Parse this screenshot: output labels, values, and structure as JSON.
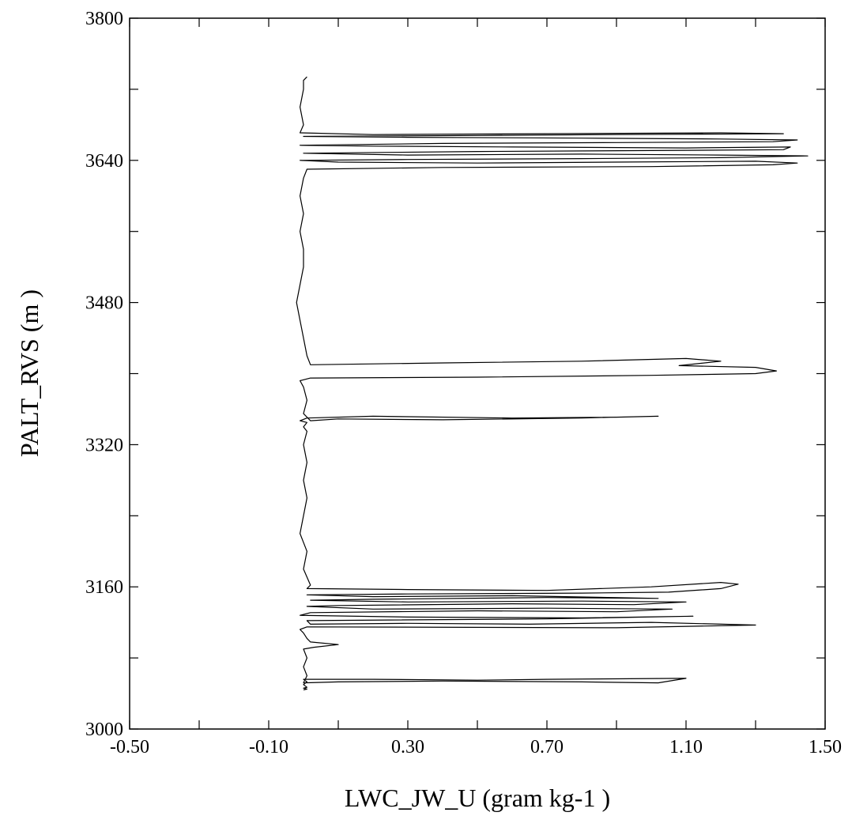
{
  "chart_data": {
    "type": "line",
    "title": "",
    "xlabel": "LWC_JW_U (gram kg-1      )",
    "ylabel": "PALT_RVS (m         )",
    "xlim": [
      -0.5,
      1.5
    ],
    "ylim": [
      3000,
      3800
    ],
    "x_ticks": [
      -0.5,
      -0.3,
      -0.1,
      0.1,
      0.3,
      0.5,
      0.7,
      0.9,
      1.1,
      1.3,
      1.5
    ],
    "x_tick_labels": [
      "-0.50",
      "-0.10",
      "0.30",
      "0.70",
      "1.10",
      "1.50"
    ],
    "y_ticks": [
      3000,
      3080,
      3160,
      3240,
      3320,
      3400,
      3480,
      3560,
      3640,
      3720,
      3800
    ],
    "y_tick_labels": [
      "3000",
      "3160",
      "3320",
      "3480",
      "3640",
      "3800"
    ],
    "grid": false,
    "legend": "none",
    "series": [
      {
        "color": "#000000",
        "points": [
          [
            0.0,
            3044
          ],
          [
            0.01,
            3045
          ],
          [
            0.0,
            3046
          ],
          [
            0.01,
            3047
          ],
          [
            0.0,
            3050
          ],
          [
            0.01,
            3053
          ],
          [
            0.0,
            3056
          ],
          [
            0.2,
            3056
          ],
          [
            0.5,
            3055
          ],
          [
            0.7,
            3056
          ],
          [
            1.1,
            3057
          ],
          [
            1.02,
            3052
          ],
          [
            0.8,
            3053
          ],
          [
            0.4,
            3054
          ],
          [
            0.1,
            3053
          ],
          [
            0.0,
            3052
          ],
          [
            0.01,
            3060
          ],
          [
            0.0,
            3070
          ],
          [
            0.01,
            3080
          ],
          [
            0.0,
            3090
          ],
          [
            0.03,
            3092
          ],
          [
            0.1,
            3095
          ],
          [
            0.02,
            3098
          ],
          [
            0.01,
            3102
          ],
          [
            0.0,
            3108
          ],
          [
            -0.01,
            3112
          ],
          [
            0.01,
            3115
          ],
          [
            0.9,
            3114
          ],
          [
            1.3,
            3117
          ],
          [
            1.0,
            3120
          ],
          [
            0.65,
            3118
          ],
          [
            0.3,
            3119
          ],
          [
            0.02,
            3118
          ],
          [
            0.01,
            3122
          ],
          [
            0.7,
            3124
          ],
          [
            1.12,
            3127
          ],
          [
            0.8,
            3125
          ],
          [
            0.3,
            3126
          ],
          [
            -0.01,
            3128
          ],
          [
            0.02,
            3131
          ],
          [
            0.5,
            3133
          ],
          [
            0.9,
            3132
          ],
          [
            1.06,
            3135
          ],
          [
            0.7,
            3136
          ],
          [
            0.2,
            3135
          ],
          [
            0.01,
            3138
          ],
          [
            0.1,
            3139
          ],
          [
            0.6,
            3141
          ],
          [
            0.95,
            3140
          ],
          [
            1.1,
            3143
          ],
          [
            0.8,
            3144
          ],
          [
            0.3,
            3143
          ],
          [
            0.02,
            3145
          ],
          [
            0.2,
            3146
          ],
          [
            0.7,
            3148
          ],
          [
            1.02,
            3147
          ],
          [
            0.6,
            3150
          ],
          [
            0.2,
            3149
          ],
          [
            0.01,
            3151
          ],
          [
            0.3,
            3152
          ],
          [
            0.8,
            3153
          ],
          [
            1.05,
            3154
          ],
          [
            1.2,
            3158
          ],
          [
            1.25,
            3163
          ],
          [
            1.2,
            3165
          ],
          [
            1.0,
            3160
          ],
          [
            0.7,
            3156
          ],
          [
            0.3,
            3157
          ],
          [
            0.01,
            3158
          ],
          [
            0.02,
            3162
          ],
          [
            0.0,
            3180
          ],
          [
            0.01,
            3200
          ],
          [
            -0.01,
            3220
          ],
          [
            0.0,
            3240
          ],
          [
            0.01,
            3260
          ],
          [
            0.0,
            3280
          ],
          [
            0.01,
            3300
          ],
          [
            0.0,
            3320
          ],
          [
            0.01,
            3335
          ],
          [
            0.0,
            3340
          ],
          [
            0.01,
            3345
          ],
          [
            -0.01,
            3347
          ],
          [
            0.01,
            3350
          ],
          [
            0.2,
            3352
          ],
          [
            0.6,
            3350
          ],
          [
            0.9,
            3351
          ],
          [
            1.02,
            3352
          ],
          [
            0.8,
            3350
          ],
          [
            0.4,
            3348
          ],
          [
            0.1,
            3349
          ],
          [
            0.02,
            3347
          ],
          [
            0.0,
            3355
          ],
          [
            0.01,
            3370
          ],
          [
            0.0,
            3385
          ],
          [
            -0.01,
            3392
          ],
          [
            0.02,
            3395
          ],
          [
            0.5,
            3396
          ],
          [
            1.0,
            3398
          ],
          [
            1.3,
            3400
          ],
          [
            1.36,
            3403
          ],
          [
            1.3,
            3407
          ],
          [
            1.08,
            3409
          ],
          [
            1.2,
            3414
          ],
          [
            1.1,
            3417
          ],
          [
            0.8,
            3414
          ],
          [
            0.4,
            3412
          ],
          [
            0.02,
            3410
          ],
          [
            0.01,
            3420
          ],
          [
            0.0,
            3440
          ],
          [
            -0.01,
            3460
          ],
          [
            -0.02,
            3480
          ],
          [
            -0.01,
            3500
          ],
          [
            0.0,
            3520
          ],
          [
            0.0,
            3540
          ],
          [
            -0.01,
            3560
          ],
          [
            0.0,
            3580
          ],
          [
            -0.01,
            3600
          ],
          [
            0.0,
            3620
          ],
          [
            0.01,
            3630
          ],
          [
            0.4,
            3632
          ],
          [
            1.0,
            3633
          ],
          [
            1.35,
            3635
          ],
          [
            1.42,
            3637
          ],
          [
            1.3,
            3639
          ],
          [
            0.9,
            3638
          ],
          [
            0.5,
            3637
          ],
          [
            0.1,
            3638
          ],
          [
            -0.01,
            3640
          ],
          [
            0.3,
            3641
          ],
          [
            0.8,
            3642
          ],
          [
            1.2,
            3643
          ],
          [
            1.45,
            3645
          ],
          [
            1.2,
            3646
          ],
          [
            0.8,
            3647
          ],
          [
            0.3,
            3646
          ],
          [
            0.0,
            3648
          ],
          [
            0.5,
            3650
          ],
          [
            1.0,
            3651
          ],
          [
            1.38,
            3652
          ],
          [
            1.4,
            3655
          ],
          [
            1.1,
            3654
          ],
          [
            0.6,
            3655
          ],
          [
            0.2,
            3656
          ],
          [
            -0.01,
            3657
          ],
          [
            0.4,
            3659
          ],
          [
            0.9,
            3660
          ],
          [
            1.35,
            3661
          ],
          [
            1.42,
            3663
          ],
          [
            1.2,
            3664
          ],
          [
            0.8,
            3665
          ],
          [
            0.3,
            3666
          ],
          [
            0.0,
            3667
          ],
          [
            0.5,
            3668
          ],
          [
            0.9,
            3669
          ],
          [
            1.38,
            3670
          ],
          [
            1.2,
            3671
          ],
          [
            0.7,
            3670
          ],
          [
            0.2,
            3669
          ],
          [
            -0.01,
            3671
          ],
          [
            0.0,
            3680
          ],
          [
            -0.01,
            3700
          ],
          [
            0.0,
            3720
          ],
          [
            0.0,
            3730
          ],
          [
            0.01,
            3734
          ]
        ]
      }
    ]
  }
}
